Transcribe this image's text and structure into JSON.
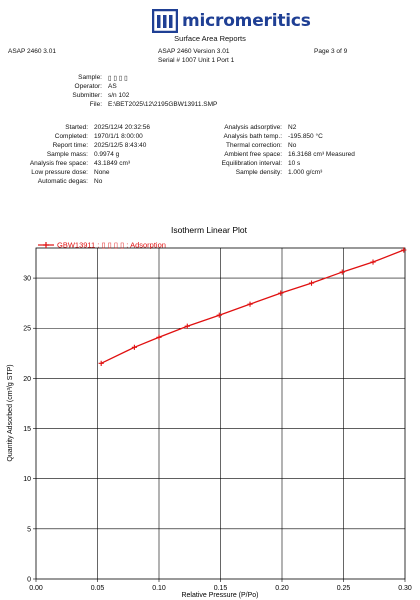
{
  "header": {
    "logo_text": "micromeritics",
    "subtitle": "Surface Area Reports",
    "left": "ASAP 2460 3.01",
    "center_line1": "ASAP 2460 Version 3.01",
    "center_line2": "Serial # 1007  Unit 1  Port 1",
    "right": "Page 3 of 9"
  },
  "sample_info": [
    {
      "label": "Sample:",
      "value": "▯ ▯ ▯ ▯"
    },
    {
      "label": "Operator:",
      "value": "AS"
    },
    {
      "label": "Submitter:",
      "value": "s/n 102"
    },
    {
      "label": "File:",
      "value": "E:\\BET2025\\12\\2195GBW13911.SMP"
    }
  ],
  "left_params": [
    {
      "label": "Started:",
      "value": "2025/12/4 20:32:56"
    },
    {
      "label": "Completed:",
      "value": "1970/1/1 8:00:00"
    },
    {
      "label": "Report time:",
      "value": "2025/12/5 8:43:40"
    },
    {
      "label": "Sample mass:",
      "value": "0.9974 g"
    },
    {
      "label": "Analysis free space:",
      "value": "43.1849 cm³"
    },
    {
      "label": "Low pressure dose:",
      "value": "None"
    },
    {
      "label": "Automatic degas:",
      "value": "No"
    }
  ],
  "right_params": [
    {
      "label": "Analysis adsorptive:",
      "value": "N2"
    },
    {
      "label": "Analysis bath temp.:",
      "value": "-195.850 °C"
    },
    {
      "label": "Thermal correction:",
      "value": "No"
    },
    {
      "label": "Ambient free space:",
      "value": "16.3168 cm³ Measured"
    },
    {
      "label": "Equilibration interval:",
      "value": "10 s"
    },
    {
      "label": "Sample density:",
      "value": "1.000 g/cm³"
    }
  ],
  "colors": {
    "series": "#e01010",
    "logo": "#1f3f94"
  },
  "chart_data": {
    "type": "line",
    "title": "Isotherm Linear Plot",
    "xlabel": "Relative Pressure (P/Po)",
    "ylabel": "Quantity Adsorbed (cm³/g STP)",
    "xlim": [
      0.0,
      0.3
    ],
    "ylim": [
      0,
      33
    ],
    "xticks": [
      0.0,
      0.05,
      0.1,
      0.15,
      0.2,
      0.25,
      0.3
    ],
    "xtick_labels": [
      "0.00",
      "0.05",
      "0.10",
      "0.15",
      "0.20",
      "0.25",
      "0.30"
    ],
    "yticks": [
      0,
      5,
      10,
      15,
      20,
      25,
      30
    ],
    "ytick_labels": [
      "0",
      "5",
      "10",
      "15",
      "20",
      "25",
      "30"
    ],
    "grid": true,
    "legend_position": "top-left",
    "series": [
      {
        "name": "GBW13911 : ▯ ▯ ▯ ▯ : Adsorption",
        "x": [
          0.053,
          0.08,
          0.1,
          0.123,
          0.149,
          0.174,
          0.199,
          0.224,
          0.249,
          0.274,
          0.299
        ],
        "y": [
          21.5,
          23.1,
          24.1,
          25.2,
          26.3,
          27.4,
          28.5,
          29.5,
          30.6,
          31.6,
          32.8
        ]
      }
    ]
  }
}
